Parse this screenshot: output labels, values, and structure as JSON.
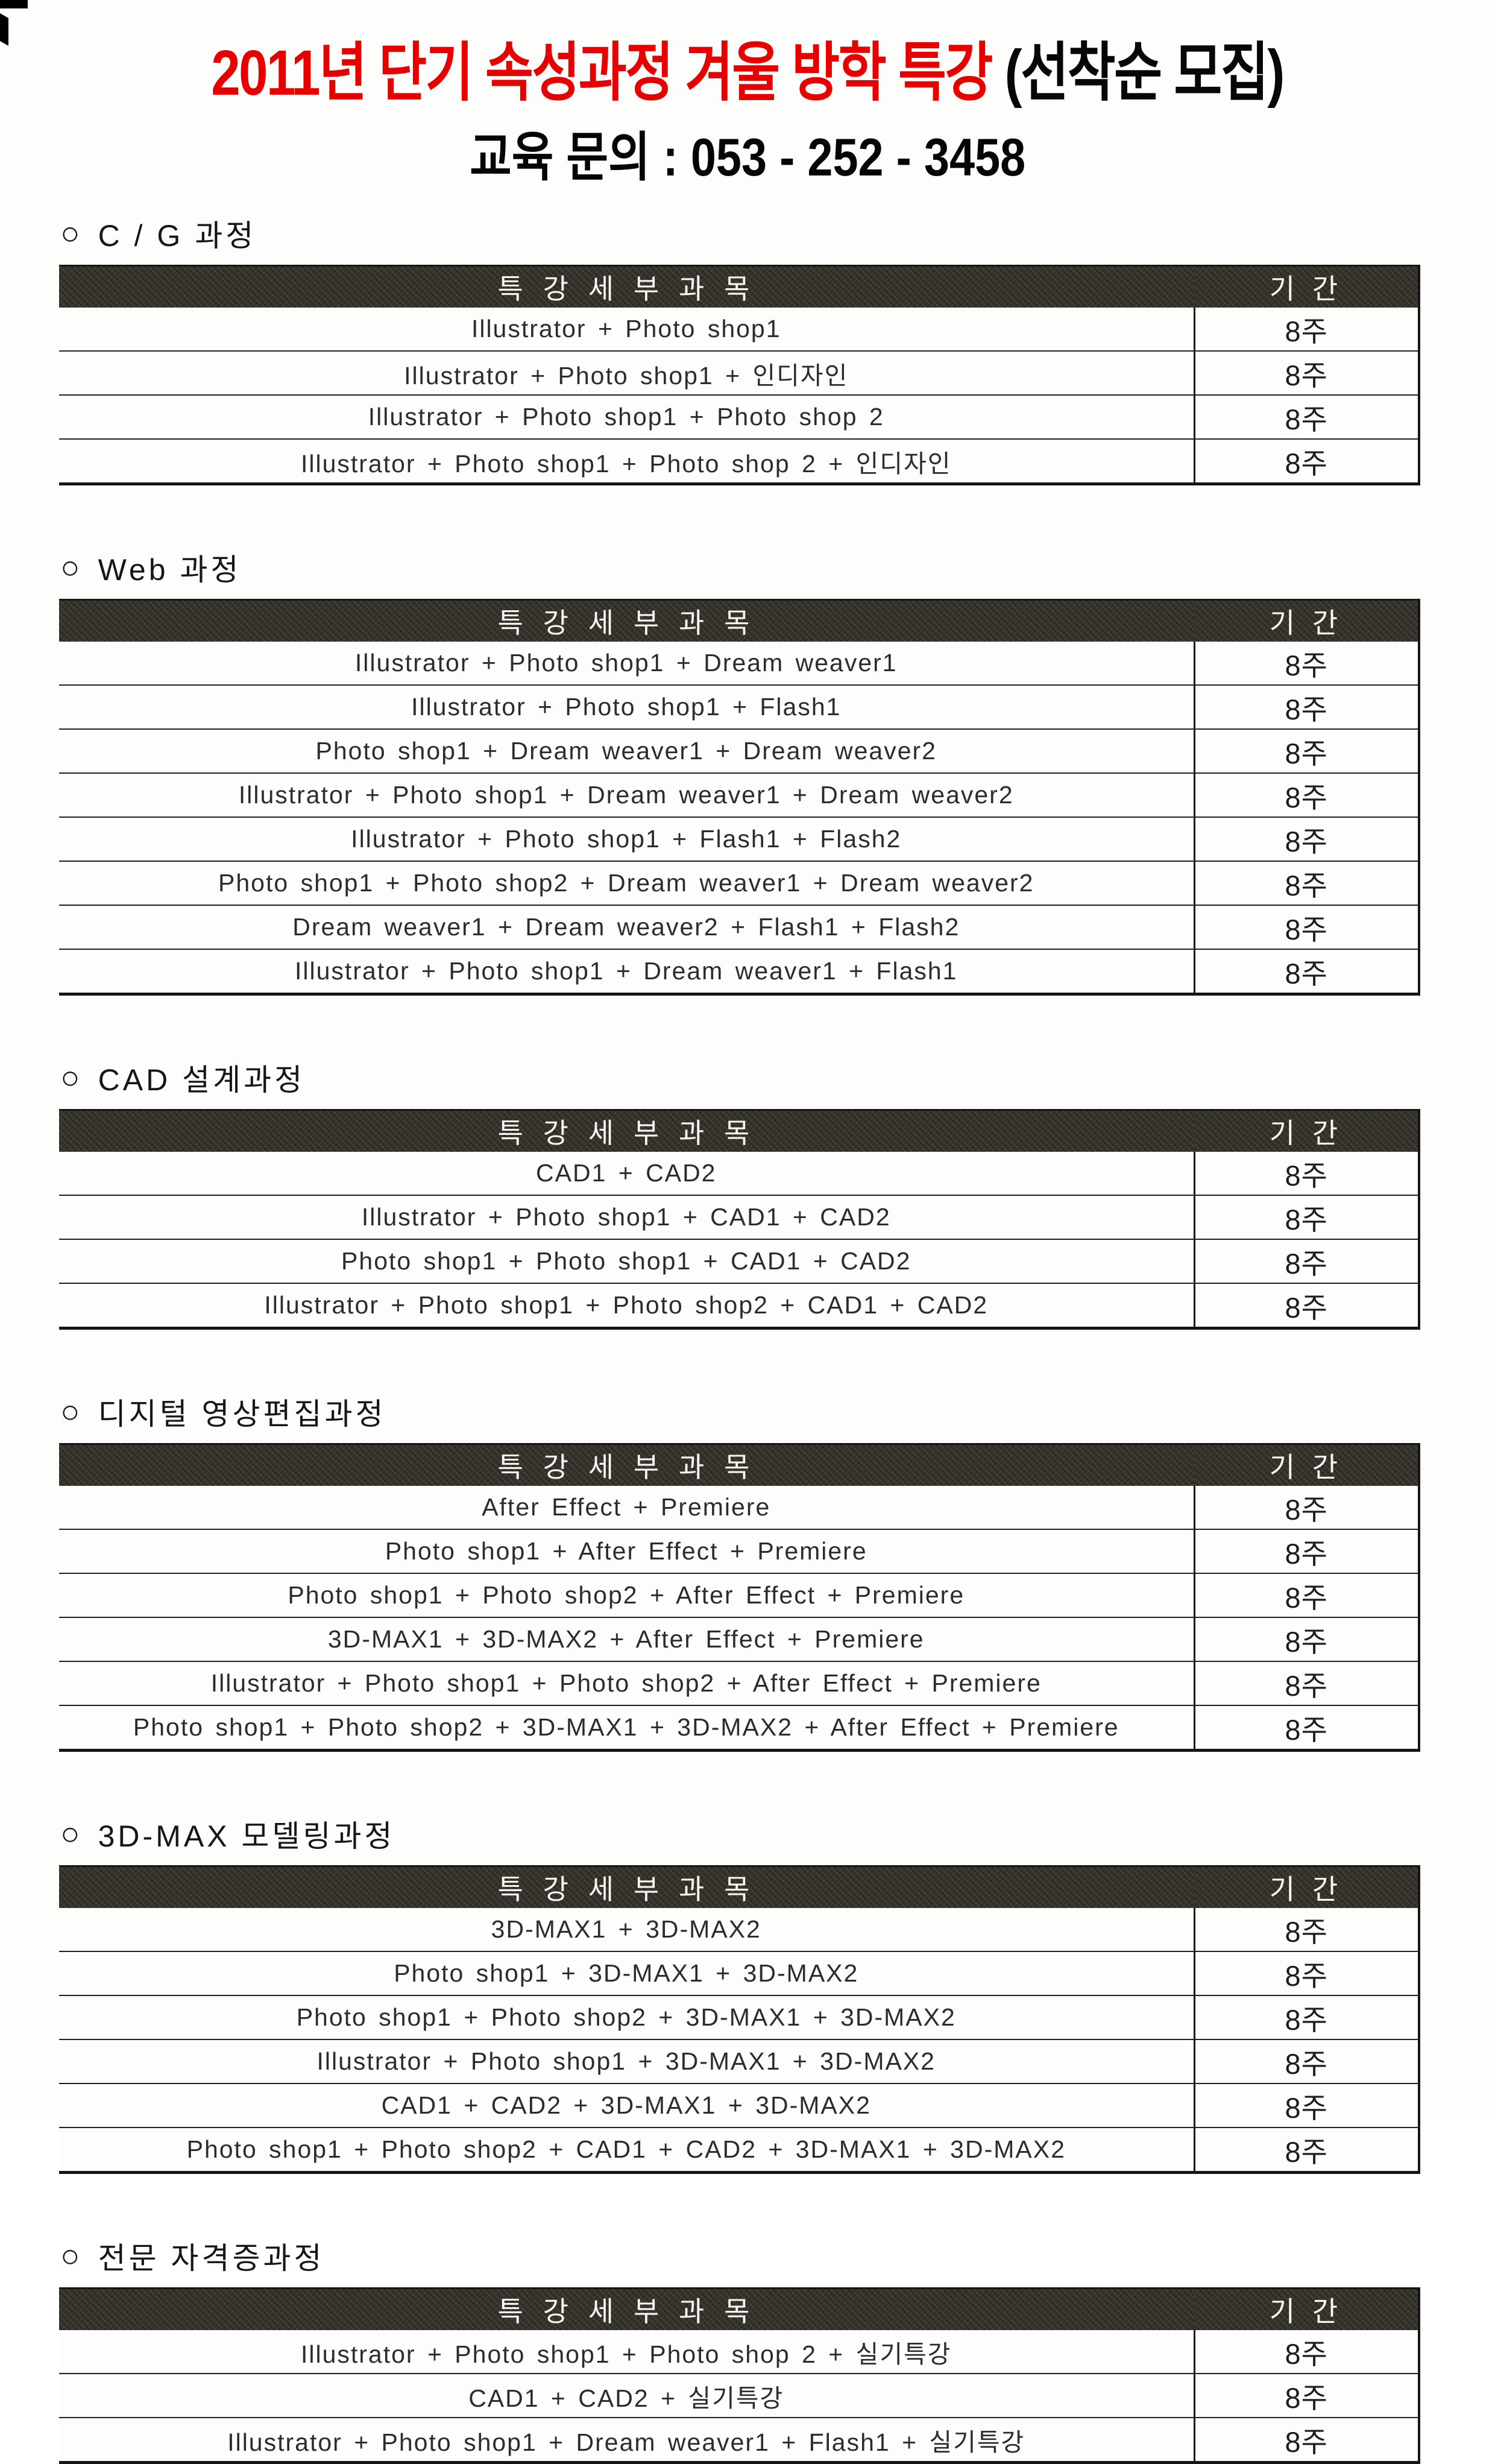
{
  "header": {
    "title_red": "2011년 단기 속성과정 겨울 방학 특강 ",
    "title_black": "(선착순 모집)",
    "contact": "교육 문의 : 053 - 252 - 3458"
  },
  "table": {
    "bullet": "○",
    "subject_header": "특 강 세 부 과 목",
    "duration_header": "기 간"
  },
  "colors": {
    "title_red": "#e60000",
    "header_bar": "#34322a",
    "header_text": "#f6f6f2",
    "body_text": "#2c2c2c"
  },
  "sections": [
    {
      "title": "C / G 과정",
      "rows": [
        {
          "subject": "Illustrator + Photo shop1",
          "duration": "8주"
        },
        {
          "subject": "Illustrator + Photo shop1 + 인디자인",
          "duration": "8주"
        },
        {
          "subject": "Illustrator + Photo shop1 + Photo shop 2",
          "duration": "8주"
        },
        {
          "subject": "Illustrator + Photo shop1 + Photo shop 2 + 인디자인",
          "duration": "8주"
        }
      ]
    },
    {
      "title": "Web 과정",
      "rows": [
        {
          "subject": "Illustrator + Photo shop1 + Dream weaver1",
          "duration": "8주"
        },
        {
          "subject": "Illustrator + Photo shop1 + Flash1",
          "duration": "8주"
        },
        {
          "subject": "Photo shop1 + Dream weaver1 + Dream weaver2",
          "duration": "8주"
        },
        {
          "subject": "Illustrator + Photo shop1 + Dream weaver1 + Dream weaver2",
          "duration": "8주"
        },
        {
          "subject": "Illustrator + Photo shop1 + Flash1 + Flash2",
          "duration": "8주"
        },
        {
          "subject": "Photo shop1 + Photo shop2 + Dream weaver1 + Dream weaver2",
          "duration": "8주"
        },
        {
          "subject": "Dream weaver1 + Dream weaver2 + Flash1 + Flash2",
          "duration": "8주"
        },
        {
          "subject": "Illustrator + Photo shop1 + Dream weaver1 + Flash1",
          "duration": "8주"
        }
      ]
    },
    {
      "title": "CAD 설계과정",
      "rows": [
        {
          "subject": "CAD1 + CAD2",
          "duration": "8주"
        },
        {
          "subject": "Illustrator + Photo shop1 + CAD1 + CAD2",
          "duration": "8주"
        },
        {
          "subject": "Photo shop1 + Photo shop1 + CAD1 + CAD2",
          "duration": "8주"
        },
        {
          "subject": "Illustrator + Photo shop1 + Photo shop2 + CAD1 + CAD2",
          "duration": "8주"
        }
      ]
    },
    {
      "title": "디지털 영상편집과정",
      "rows": [
        {
          "subject": "After Effect + Premiere",
          "duration": "8주"
        },
        {
          "subject": "Photo shop1 + After Effect + Premiere",
          "duration": "8주"
        },
        {
          "subject": "Photo shop1 + Photo shop2 + After Effect + Premiere",
          "duration": "8주"
        },
        {
          "subject": "3D-MAX1 + 3D-MAX2 + After Effect + Premiere",
          "duration": "8주"
        },
        {
          "subject": "Illustrator + Photo shop1 + Photo shop2 + After Effect + Premiere",
          "duration": "8주"
        },
        {
          "subject": "Photo shop1 + Photo shop2 + 3D-MAX1 + 3D-MAX2 + After Effect + Premiere",
          "duration": "8주"
        }
      ]
    },
    {
      "title": "3D-MAX 모델링과정",
      "rows": [
        {
          "subject": "3D-MAX1 + 3D-MAX2",
          "duration": "8주"
        },
        {
          "subject": "Photo shop1 + 3D-MAX1 + 3D-MAX2",
          "duration": "8주"
        },
        {
          "subject": "Photo shop1 + Photo shop2 + 3D-MAX1 + 3D-MAX2",
          "duration": "8주"
        },
        {
          "subject": "Illustrator + Photo shop1 + 3D-MAX1 + 3D-MAX2",
          "duration": "8주"
        },
        {
          "subject": "CAD1 + CAD2 + 3D-MAX1 + 3D-MAX2",
          "duration": "8주"
        },
        {
          "subject": "Photo shop1 + Photo shop2 + CAD1 + CAD2 + 3D-MAX1 + 3D-MAX2",
          "duration": "8주"
        }
      ]
    },
    {
      "title": "전문 자격증과정",
      "rows": [
        {
          "subject": "Illustrator + Photo shop1 + Photo shop 2 + 실기특강",
          "duration": "8주"
        },
        {
          "subject": "CAD1 + CAD2 + 실기특강",
          "duration": "8주"
        },
        {
          "subject": "Illustrator + Photo shop1 + Dream weaver1 + Flash1 + 실기특강",
          "duration": "8주"
        }
      ]
    }
  ]
}
